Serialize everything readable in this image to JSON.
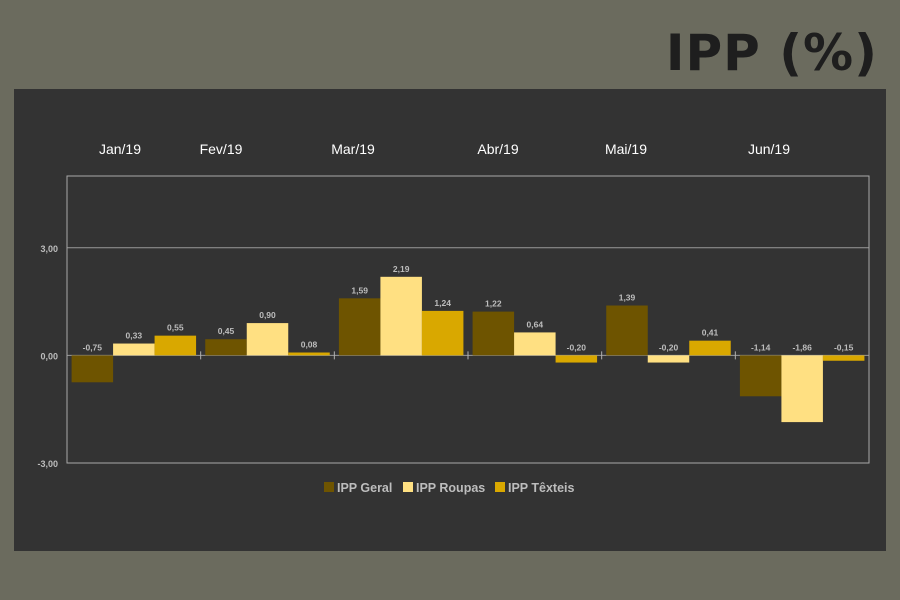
{
  "page": {
    "title": "IPP (%)"
  },
  "colors": {
    "background": "#6b6b5e",
    "panel": "#333333",
    "title": "#1e1e1e",
    "text": "#ffffff",
    "muted_text": "#bdbdbd",
    "series": [
      "#6e5400",
      "#ffe082",
      "#d9a800"
    ]
  },
  "chart_data": {
    "type": "bar",
    "title": "",
    "xlabel": "",
    "ylabel": "",
    "categories": [
      "Jan/19",
      "Fev/19",
      "Mar/19",
      "Abr/19",
      "Mai/19",
      "Jun/19"
    ],
    "series": [
      {
        "name": "IPP Geral",
        "values": [
          -0.75,
          0.45,
          1.59,
          1.22,
          1.39,
          -1.14
        ],
        "labels": [
          "-0,75",
          "0,45",
          "1,59",
          "1,22",
          "1,39",
          "-1,14"
        ]
      },
      {
        "name": "IPP Roupas",
        "values": [
          0.33,
          0.9,
          2.19,
          0.64,
          -0.2,
          -1.86
        ],
        "labels": [
          "0,33",
          "0,90",
          "2,19",
          "0,64",
          "-0,20",
          "-1,86"
        ]
      },
      {
        "name": "IPP Têxteis",
        "values": [
          0.55,
          0.08,
          1.24,
          -0.2,
          0.41,
          -0.15
        ],
        "labels": [
          "0,55",
          "0,08",
          "1,24",
          "-0,20",
          "0,41",
          "-0,15"
        ]
      }
    ],
    "ylim": [
      -3.0,
      5.0
    ],
    "yticks": [
      {
        "value": 3,
        "label": "3,00"
      },
      {
        "value": 0,
        "label": "0,00"
      },
      {
        "value": -3,
        "label": "-3,00"
      }
    ],
    "grid": true,
    "legend": "bottom",
    "category_labels_position": "top"
  }
}
